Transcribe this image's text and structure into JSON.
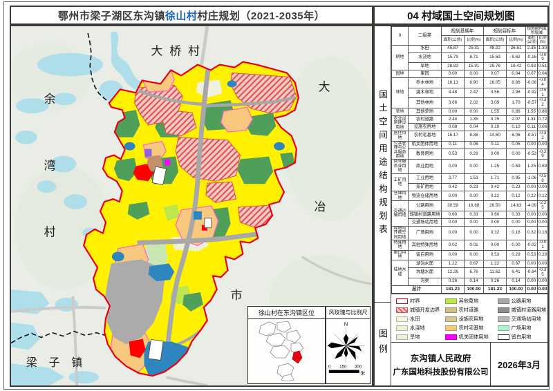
{
  "titles": {
    "main_prefix": "鄂州市梁子湖区东沟镇",
    "main_highlight": "徐山村",
    "main_suffix": "村庄规划（2021-2035年）",
    "right": "04 村域国土空间规划图",
    "table_section": "国土空间用途结构规划表",
    "legend_section": "图例",
    "highlight_color": "#1a66c2"
  },
  "map": {
    "labels": {
      "north_village": "大桥村",
      "west_chars": [
        "余",
        "湾",
        "村"
      ],
      "east_chars": [
        "大",
        "冶",
        "市"
      ],
      "south_town": "梁子镇"
    },
    "insets": {
      "location_title": "徐山村在东沟镇区位",
      "compass_title": "风玫瑰与比例尺",
      "north": "N",
      "scale_ticks": [
        "0",
        "150",
        "300"
      ],
      "scale_unit": "米"
    },
    "colors": {
      "boundary_red": "#e60012",
      "base_yellow": "#fff100",
      "background": "#e9ede5",
      "water_light": "#aedee9"
    }
  },
  "table": {
    "header": {
      "col1": "0",
      "col2": "二级类",
      "group1": "规划基期年",
      "group2": "规划目标年",
      "group3": "规划期内面积增减",
      "sub_area": "面积(公顷)",
      "sub_ratio": "比例(%)"
    },
    "rows": [
      {
        "g": "耕地",
        "gs": 3,
        "n": "水田",
        "v": [
          "45.87",
          "25.31",
          "48.22",
          "26.61",
          "2.35",
          "1.30"
        ]
      },
      {
        "n": "水浇地",
        "v": [
          "15.79",
          "8.71",
          "15.63",
          "8.62",
          "-0.16",
          "-0.09"
        ]
      },
      {
        "n": "旱地",
        "v": [
          "28.83",
          "15.91",
          "29.76",
          "16.42",
          "0.93",
          "0.51"
        ]
      },
      {
        "g": "园地",
        "gs": 1,
        "n": "果园",
        "v": [
          "0.00",
          "0.00",
          "0.07",
          "0.04",
          "0.07",
          "0.04"
        ]
      },
      {
        "g": "林地",
        "gs": 3,
        "n": "乔木林地",
        "v": [
          "16.13",
          "8.90",
          "16.05",
          "8.86",
          "-0.08",
          "-0.04"
        ]
      },
      {
        "n": "灌木林地",
        "v": [
          "4.48",
          "2.47",
          "3.56",
          "1.96",
          "-0.92",
          "-0.51"
        ]
      },
      {
        "n": "其他林地",
        "v": [
          "3.66",
          "2.02",
          "3.09",
          "1.70",
          "-0.57",
          "-0.32"
        ]
      },
      {
        "g": "草地",
        "gs": 1,
        "n": "其他草地",
        "v": [
          "0.00",
          "0.00",
          "1.55",
          "0.86",
          "1.55",
          "0.86"
        ]
      },
      {
        "g": "农业设施建设用地",
        "gs": 2,
        "n": "农村道路",
        "v": [
          "2.44",
          "1.35",
          "3.75",
          "2.07",
          "1.31",
          "0.72"
        ]
      },
      {
        "n": "设施农用地",
        "v": [
          "0.08",
          "0.04",
          "0.19",
          "0.10",
          "0.11",
          "0.06"
        ]
      },
      {
        "g": "居住用地",
        "gs": 1,
        "n": "农村宅基地",
        "v": [
          "15.17",
          "8.38",
          "14.60",
          "8.06",
          "-0.57",
          "-0.32"
        ]
      },
      {
        "g": "公共管理与公共服务用地",
        "gs": 2,
        "n": "机关团体用地",
        "v": [
          "0.11",
          "0.06",
          "0.11",
          "0.06",
          "0.00",
          "0.00"
        ]
      },
      {
        "n": "教育用地",
        "v": [
          "0.53",
          "0.29",
          "0.00",
          "0.00",
          "-0.53",
          "-0.29"
        ]
      },
      {
        "g": "商业服务业用地",
        "gs": 1,
        "n": "商业用地",
        "v": [
          "0.00",
          "0.00",
          "1.25",
          "0.69",
          "1.25",
          "0.69"
        ]
      },
      {
        "g": "工矿用地",
        "gs": 2,
        "n": "工业用地",
        "v": [
          "2.77",
          "1.53",
          "1.71",
          "0.95",
          "-1.06",
          "-0.58"
        ]
      },
      {
        "n": "采矿用地",
        "v": [
          "0.42",
          "0.23",
          "0.42",
          "0.23",
          "0.00",
          "0.00"
        ]
      },
      {
        "g": "仓储用地",
        "gs": 1,
        "n": "物流仓储用地",
        "v": [
          "0.00",
          "0.00",
          "0.22",
          "0.12",
          "0.22",
          "0.12"
        ]
      },
      {
        "g": "交通运输用地",
        "gs": 3,
        "n": "公路用地",
        "v": [
          "30.59",
          "16.88",
          "26.50",
          "14.63",
          "-4.09",
          "-2.25"
        ]
      },
      {
        "n": "城镇村道路用地",
        "v": [
          "0.60",
          "0.33",
          "0.60",
          "0.33",
          "0.00",
          "0.00"
        ]
      },
      {
        "n": "交通场站用地",
        "v": [
          "0.00",
          "0.00",
          "0.00",
          "0.00",
          "0.00",
          "0.00"
        ]
      },
      {
        "g": "绿地与开敞空间用地",
        "gs": 1,
        "n": "广场用地",
        "v": [
          "0.00",
          "0.00",
          "0.32",
          "0.18",
          "0.32",
          "0.18"
        ]
      },
      {
        "g": "特殊用地",
        "gs": 1,
        "n": "其他特殊用地",
        "v": [
          "0.02",
          "0.01",
          "0.00",
          "0.00",
          "-0.02",
          "-0.01"
        ]
      },
      {
        "g": "留白用地",
        "gs": 1,
        "n": "留白用地",
        "v": [
          "0.00",
          "0.00",
          "0.53",
          "0.29",
          "0.53",
          "0.29"
        ]
      },
      {
        "g": "陆地水域",
        "gs": 3,
        "n": "湖泊水面",
        "v": [
          "1.22",
          "0.67",
          "1.22",
          "0.67",
          "0.00",
          "0.00"
        ]
      },
      {
        "n": "坑塘水面",
        "v": [
          "12.26",
          "6.76",
          "11.62",
          "6.41",
          "-0.64",
          "-0.35"
        ]
      },
      {
        "n": "沟渠",
        "v": [
          "0.26",
          "0.14",
          "0.26",
          "0.14",
          "0.00",
          "0.00"
        ]
      }
    ],
    "total": {
      "label": "总计",
      "v": [
        "181.23",
        "100.00",
        "181.23",
        "100.00",
        "0.00",
        "0.00"
      ]
    }
  },
  "legend": {
    "hatch_stripe": "#e05050",
    "hatch_bg": "#f5c9c4",
    "columns": [
      [
        {
          "label": "村界",
          "outline": "#e60012"
        },
        {
          "label": "城镇开发边界",
          "hatch": true
        },
        {
          "label": "水田",
          "color": "#f4f3df"
        },
        {
          "label": "水浇地",
          "color": "#f0f1db"
        },
        {
          "label": "旱地",
          "color": "#efeed6"
        },
        {
          "label": "果园",
          "color": "#c9e7b5"
        },
        {
          "label": "乔木林地",
          "color": "#58a763"
        },
        {
          "label": "灌木林地",
          "color": "#4c9c58"
        },
        {
          "label": "其他林地",
          "color": "#63ad6c"
        },
        {
          "label": "永久基本农田",
          "color": "#ffff00"
        }
      ],
      [
        {
          "label": "其他草地",
          "color": "#bee64e"
        },
        {
          "label": "农村道路",
          "color": "#cfc089"
        },
        {
          "label": "设施农用地",
          "color": "#d6c693"
        },
        {
          "label": "农村宅基地",
          "color": "#f7c87e"
        },
        {
          "label": "机关团体用地",
          "color": "#ff00ff"
        },
        {
          "label": "商业用地",
          "color": "#ff0000"
        },
        {
          "label": "工业用地",
          "color": "#c3906c"
        },
        {
          "label": "采矿用地",
          "color": "#9c6b50"
        },
        {
          "label": "物流仓储用地",
          "color": "#8d63db"
        }
      ],
      [
        {
          "label": "公路用地",
          "color": "#a9a9a9"
        },
        {
          "label": "城镇村道路用地",
          "color": "#8f8f8f"
        },
        {
          "label": "交通场站用地",
          "color": "#b7b7b7"
        },
        {
          "label": "广场用地",
          "color": "#abf3cb"
        },
        {
          "label": "留白用地",
          "outline": "#333333"
        },
        {
          "label": "湖泊水面",
          "color": "#2f86be"
        },
        {
          "label": "坑塘水面",
          "color": "#2f86be"
        },
        {
          "label": "沟渠",
          "color": "#3f8fc4"
        },
        {
          "label": "村庄建设边界",
          "outline": "#ff5fd3"
        }
      ]
    ]
  },
  "footer": {
    "org_line1": "东沟镇人民政府",
    "org_line2": "广东国地科技股份有限公司",
    "date": "2026年3月"
  }
}
